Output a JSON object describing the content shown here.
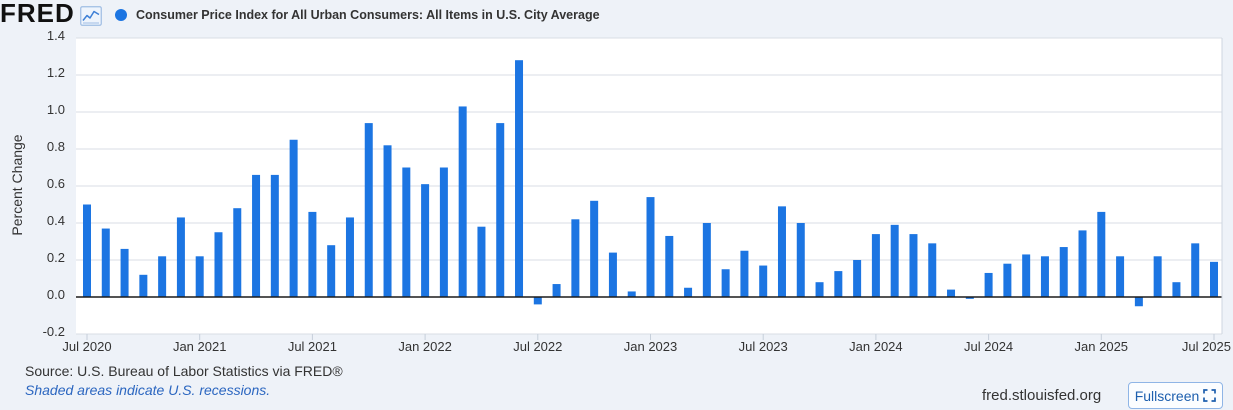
{
  "header": {
    "logo_text": "FRED",
    "logo_icon": "line-chart-icon"
  },
  "chart_data": {
    "type": "bar",
    "ylabel": "Percent Change",
    "ylim": [
      -0.2,
      1.4
    ],
    "yticks": [
      "1.4",
      "1.2",
      "1.0",
      "0.8",
      "0.6",
      "0.4",
      "0.2",
      "0.0",
      "-0.2"
    ],
    "grid": true,
    "legend_position": "top-left",
    "xticks": [
      {
        "date": "2020-07-01",
        "label": "Jul 2020"
      },
      {
        "date": "2021-01-01",
        "label": "Jan 2021"
      },
      {
        "date": "2021-07-01",
        "label": "Jul 2021"
      },
      {
        "date": "2022-01-01",
        "label": "Jan 2022"
      },
      {
        "date": "2022-07-01",
        "label": "Jul 2022"
      },
      {
        "date": "2023-01-01",
        "label": "Jan 2023"
      },
      {
        "date": "2023-07-01",
        "label": "Jul 2023"
      },
      {
        "date": "2024-01-01",
        "label": "Jan 2024"
      },
      {
        "date": "2024-07-01",
        "label": "Jul 2024"
      },
      {
        "date": "2025-01-01",
        "label": "Jan 2025"
      },
      {
        "date": "2025-07-01",
        "label": "Jul 2025"
      }
    ],
    "x": [
      "2020-07-01",
      "2020-08-01",
      "2020-09-01",
      "2020-10-01",
      "2020-11-01",
      "2020-12-01",
      "2021-01-01",
      "2021-02-01",
      "2021-03-01",
      "2021-04-01",
      "2021-05-01",
      "2021-06-01",
      "2021-07-01",
      "2021-08-01",
      "2021-09-01",
      "2021-10-01",
      "2021-11-01",
      "2021-12-01",
      "2022-01-01",
      "2022-02-01",
      "2022-03-01",
      "2022-04-01",
      "2022-05-01",
      "2022-06-01",
      "2022-07-01",
      "2022-08-01",
      "2022-09-01",
      "2022-10-01",
      "2022-11-01",
      "2022-12-01",
      "2023-01-01",
      "2023-02-01",
      "2023-03-01",
      "2023-04-01",
      "2023-05-01",
      "2023-06-01",
      "2023-07-01",
      "2023-08-01",
      "2023-09-01",
      "2023-10-01",
      "2023-11-01",
      "2023-12-01",
      "2024-01-01",
      "2024-02-01",
      "2024-03-01",
      "2024-04-01",
      "2024-05-01",
      "2024-06-01",
      "2024-07-01",
      "2024-08-01",
      "2024-09-01",
      "2024-10-01",
      "2024-11-01",
      "2024-12-01",
      "2025-01-01",
      "2025-02-01",
      "2025-03-01",
      "2025-04-01",
      "2025-05-01",
      "2025-06-01",
      "2025-07-01"
    ],
    "series": [
      {
        "name": "Consumer Price Index for All Urban Consumers: All Items in U.S. City Average",
        "color": "#1c75e2",
        "values": [
          0.5,
          0.37,
          0.26,
          0.12,
          0.22,
          0.43,
          0.22,
          0.35,
          0.48,
          0.66,
          0.66,
          0.85,
          0.46,
          0.28,
          0.43,
          0.94,
          0.82,
          0.7,
          0.61,
          0.7,
          1.03,
          0.38,
          0.94,
          1.28,
          -0.04,
          0.07,
          0.42,
          0.52,
          0.24,
          0.03,
          0.54,
          0.33,
          0.05,
          0.4,
          0.15,
          0.25,
          0.17,
          0.49,
          0.4,
          0.08,
          0.14,
          0.2,
          0.34,
          0.39,
          0.34,
          0.29,
          0.04,
          -0.01,
          0.13,
          0.18,
          0.23,
          0.22,
          0.27,
          0.36,
          0.46,
          0.22,
          -0.05,
          0.22,
          0.08,
          0.29,
          0.19
        ]
      }
    ]
  },
  "footer": {
    "source": "Source: U.S. Bureau of Labor Statistics via FRED®",
    "recession_note": "Shaded areas indicate U.S. recessions.",
    "site": "fred.stlouisfed.org",
    "fullscreen_label": "Fullscreen",
    "fullscreen_icon": "fullscreen-icon"
  },
  "colors": {
    "page_background": "#eef2f8",
    "plot_background": "#ffffff",
    "zero_line": "#1b1b1b",
    "recession_note": "#2b66c0",
    "button_accent": "#1d5fae",
    "button_border": "#8fb5e6"
  }
}
